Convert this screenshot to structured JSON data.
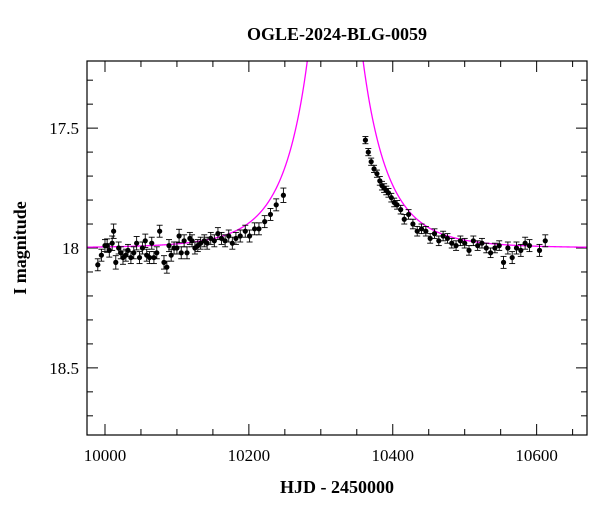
{
  "chart_data": {
    "type": "scatter",
    "title": "OGLE-2024-BLG-0059",
    "xlabel": "HJD - 2450000",
    "ylabel": "I magnitude",
    "xlim": [
      9975,
      10670
    ],
    "ylim": [
      18.78,
      17.22
    ],
    "y_inverted": true,
    "x_ticks": [
      10000,
      10200,
      10400,
      10600
    ],
    "x_tick_labels": [
      "10000",
      "10200",
      "10400",
      "10600"
    ],
    "y_ticks": [
      17.5,
      18,
      18.5
    ],
    "y_tick_labels": [
      "17.5",
      "18",
      "18.5"
    ],
    "grid": false,
    "colors": {
      "points": "#000000",
      "model": "#ff00ff",
      "axes": "#000000"
    },
    "model": {
      "t0": 10320,
      "u0": 0.016,
      "tE": 72,
      "m_base": 18.0,
      "label": ""
    },
    "series": [
      {
        "type": "points_with_errorbars",
        "x": [
          9990,
          9995,
          10000,
          10003,
          10006,
          10010,
          10012,
          10015,
          10019,
          10022,
          10025,
          10029,
          10032,
          10036,
          10040,
          10044,
          10048,
          10052,
          10056,
          10058,
          10062,
          10065,
          10068,
          10072,
          10076,
          10082,
          10086,
          10089,
          10092,
          10096,
          10100,
          10103,
          10106,
          10110,
          10114,
          10118,
          10121,
          10125,
          10129,
          10133,
          10138,
          10142,
          10147,
          10152,
          10157,
          10162,
          10167,
          10172,
          10177,
          10182,
          10188,
          10195,
          10201,
          10208,
          10214,
          10222,
          10230,
          10238,
          10248,
          10362,
          10366,
          10370,
          10374,
          10378,
          10382,
          10385,
          10388,
          10391,
          10394,
          10398,
          10402,
          10406,
          10411,
          10416,
          10422,
          10428,
          10434,
          10440,
          10446,
          10452,
          10458,
          10464,
          10470,
          10476,
          10482,
          10488,
          10494,
          10500,
          10506,
          10512,
          10518,
          10524,
          10530,
          10536,
          10542,
          10548,
          10554,
          10560,
          10566,
          10572,
          10578,
          10584,
          10590,
          10604,
          10612
        ],
        "y": [
          18.07,
          18.03,
          17.99,
          17.99,
          18.01,
          17.98,
          17.93,
          18.06,
          18.0,
          18.02,
          18.04,
          18.03,
          18.01,
          18.04,
          18.02,
          17.98,
          18.04,
          18.0,
          17.97,
          18.03,
          18.04,
          17.98,
          18.04,
          18.02,
          17.93,
          18.06,
          18.08,
          17.99,
          18.03,
          18.0,
          18.0,
          17.95,
          18.02,
          17.97,
          18.02,
          17.96,
          17.97,
          18.0,
          17.99,
          17.98,
          17.97,
          17.98,
          17.96,
          17.97,
          17.94,
          17.96,
          17.97,
          17.95,
          17.98,
          17.96,
          17.95,
          17.93,
          17.95,
          17.92,
          17.92,
          17.89,
          17.86,
          17.82,
          17.78,
          17.55,
          17.6,
          17.64,
          17.67,
          17.69,
          17.72,
          17.74,
          17.75,
          17.76,
          17.77,
          17.79,
          17.81,
          17.82,
          17.84,
          17.88,
          17.86,
          17.9,
          17.93,
          17.92,
          17.93,
          17.96,
          17.94,
          17.97,
          17.95,
          17.96,
          17.98,
          17.99,
          17.97,
          17.98,
          18.01,
          17.97,
          17.99,
          17.98,
          18.0,
          18.02,
          18.0,
          17.99,
          18.06,
          18.0,
          18.04,
          18.0,
          18.01,
          17.98,
          17.99,
          18.01,
          17.97
        ],
        "yerr": [
          0.025,
          0.025,
          0.025,
          0.028,
          0.028,
          0.03,
          0.03,
          0.028,
          0.025,
          0.025,
          0.028,
          0.025,
          0.025,
          0.025,
          0.025,
          0.028,
          0.025,
          0.025,
          0.028,
          0.025,
          0.025,
          0.025,
          0.025,
          0.025,
          0.025,
          0.028,
          0.025,
          0.025,
          0.025,
          0.025,
          0.025,
          0.028,
          0.025,
          0.025,
          0.025,
          0.025,
          0.025,
          0.025,
          0.025,
          0.025,
          0.025,
          0.025,
          0.025,
          0.025,
          0.025,
          0.025,
          0.025,
          0.025,
          0.025,
          0.025,
          0.025,
          0.025,
          0.025,
          0.025,
          0.025,
          0.025,
          0.025,
          0.025,
          0.03,
          0.015,
          0.015,
          0.015,
          0.015,
          0.015,
          0.018,
          0.018,
          0.018,
          0.018,
          0.018,
          0.018,
          0.018,
          0.018,
          0.018,
          0.02,
          0.02,
          0.02,
          0.02,
          0.02,
          0.02,
          0.02,
          0.02,
          0.02,
          0.02,
          0.02,
          0.02,
          0.02,
          0.02,
          0.02,
          0.02,
          0.02,
          0.02,
          0.02,
          0.02,
          0.02,
          0.02,
          0.02,
          0.025,
          0.025,
          0.025,
          0.025,
          0.025,
          0.025,
          0.025,
          0.025,
          0.025
        ]
      }
    ]
  }
}
